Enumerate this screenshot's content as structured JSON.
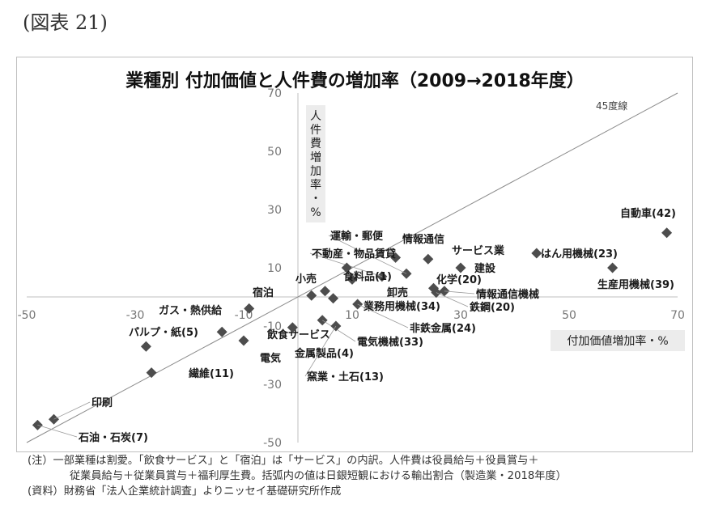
{
  "figure_label": "(図表 21)",
  "chart_data": {
    "type": "scatter",
    "title": "業種別 付加価値と人件費の増加率（2009→2018年度）",
    "xlabel": "付加価値増加率・%",
    "ylabel": "人件費増加率・%",
    "xlim": [
      -50,
      70
    ],
    "ylim": [
      -50,
      70
    ],
    "xticks": [
      "-50",
      "-30",
      "-10",
      "10",
      "30",
      "50",
      "70"
    ],
    "yticks": [
      "70",
      "50",
      "30",
      "10",
      "-10",
      "-30",
      "-50"
    ],
    "reference_line_label": "45度線",
    "color": "#4d4d4d",
    "points": [
      {
        "label": "自動車(42)",
        "x": 68,
        "y": 22
      },
      {
        "label": "はん用機械(23)",
        "x": 44,
        "y": 15
      },
      {
        "label": "生産用機械(39)",
        "x": 58,
        "y": 10
      },
      {
        "label": "サービス業",
        "x": 30,
        "y": 10
      },
      {
        "label": "建設",
        "x": 24,
        "y": 13
      },
      {
        "label": "情報通信",
        "x": 18,
        "y": 13.5
      },
      {
        "label": "運輸・郵便",
        "x": 20,
        "y": 8
      },
      {
        "label": "不動産・物品賃貸",
        "x": 15.5,
        "y": 7
      },
      {
        "label": "化学(20)",
        "x": 25,
        "y": 3
      },
      {
        "label": "情報通信機械",
        "x": 27,
        "y": 2
      },
      {
        "label": "鉄鋼(20)",
        "x": 25.5,
        "y": 1.5
      },
      {
        "label": "小売",
        "x": 10,
        "y": 6
      },
      {
        "label": "食料品(1)",
        "x": 9,
        "y": 10
      },
      {
        "label": "卸売",
        "x": 5,
        "y": 2
      },
      {
        "label": "業務用機械(34)",
        "x": 6.5,
        "y": -0.5
      },
      {
        "label": "宿泊",
        "x": 2.5,
        "y": 0.5
      },
      {
        "label": "非鉄金属(24)",
        "x": 11,
        "y": -2.5
      },
      {
        "label": "飲食サービス",
        "x": -9,
        "y": -4
      },
      {
        "label": "電気機械(33)",
        "x": 4.5,
        "y": -8
      },
      {
        "label": "金属製品(4)",
        "x": -1,
        "y": -10.5
      },
      {
        "label": "窯業・土石(13)",
        "x": 7,
        "y": -10
      },
      {
        "label": "ガス・熱供給",
        "x": -10,
        "y": -15
      },
      {
        "label": "電気",
        "x": -28,
        "y": -17
      },
      {
        "label": "パルプ・紙(5)",
        "x": -14,
        "y": -12
      },
      {
        "label": "繊維(11)",
        "x": -27,
        "y": -26
      },
      {
        "label": "印刷",
        "x": -45,
        "y": -42
      },
      {
        "label": "石油・石炭(7)",
        "x": -48,
        "y": -44
      }
    ]
  },
  "notes": [
    "(注）一部業種は割愛。「飲食サービス」と「宿泊」は「サービス」の内訳。人件費は役員給与＋役員賞与＋",
    "従業員給与＋従業員賞与＋福利厚生費。括弧内の値は日銀短観における輸出割合（製造業・2018年度）",
    "(資料）財務省「法人企業統計調査」よりニッセイ基礎研究所作成"
  ]
}
